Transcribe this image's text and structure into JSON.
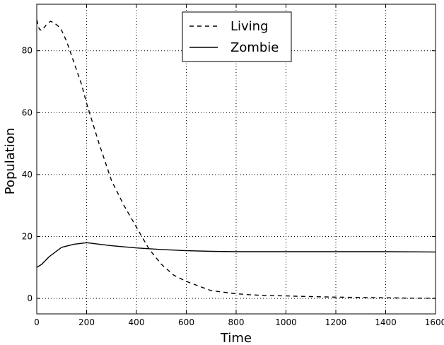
{
  "chart_data": {
    "type": "line",
    "title": "",
    "xlabel": "Time",
    "ylabel": "Population",
    "xlim": [
      0,
      1600
    ],
    "ylim": [
      -5,
      95
    ],
    "x_ticks": [
      0,
      200,
      400,
      600,
      800,
      1000,
      1200,
      1400,
      1600
    ],
    "y_ticks": [
      0,
      20,
      40,
      60,
      80
    ],
    "grid": true,
    "legend_position": "top-center",
    "series": [
      {
        "name": "Living",
        "style": "dashed",
        "color": "#000000",
        "x": [
          0,
          10,
          20,
          30,
          40,
          55,
          70,
          85,
          100,
          120,
          150,
          180,
          200,
          250,
          300,
          350,
          400,
          450,
          500,
          550,
          600,
          650,
          700,
          750,
          800,
          850,
          900,
          1000,
          1100,
          1200,
          1300,
          1400,
          1500,
          1600
        ],
        "y": [
          90,
          87,
          86.5,
          87.5,
          88.5,
          89.5,
          89,
          88,
          86.5,
          83,
          76,
          69,
          63,
          50,
          38,
          30,
          23,
          16,
          11,
          7.5,
          5.5,
          4,
          2.5,
          2,
          1.5,
          1.2,
          1,
          0.8,
          0.6,
          0.4,
          0.3,
          0.2,
          0.1,
          0.05
        ]
      },
      {
        "name": "Zombie",
        "style": "solid",
        "color": "#000000",
        "x": [
          0,
          20,
          50,
          100,
          150,
          200,
          250,
          300,
          400,
          500,
          600,
          700,
          800,
          900,
          1000,
          1200,
          1400,
          1600
        ],
        "y": [
          10,
          11,
          13.5,
          16.5,
          17.5,
          18,
          17.5,
          17,
          16.3,
          15.8,
          15.4,
          15.2,
          15.1,
          15.1,
          15.1,
          15.1,
          15.1,
          15
        ]
      }
    ]
  }
}
